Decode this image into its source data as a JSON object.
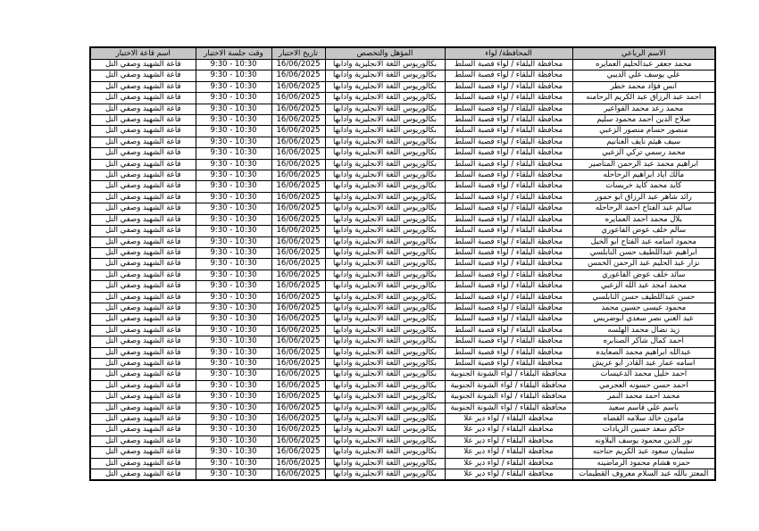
{
  "colors": {
    "header_background": "#c6c6c6",
    "border": "#000000",
    "page_background": "#ffffff"
  },
  "table": {
    "headers": {
      "name": "الاسم الرباعي",
      "district": "المحافظة/ لواء",
      "qualification": "المؤهل والتخصص",
      "date": "تاريخ الاختبار",
      "time": "وقت جلسة الاختبار",
      "hall": "اسم قاعة الاختبار"
    },
    "common": {
      "qualification": "بكالوريوس اللغة الانجليزية وآدابها",
      "date": "16/06/2025",
      "time": "9:30 - 10:30",
      "hall": "قاعة الشهيد وصفي التل"
    },
    "rows": [
      {
        "name": "محمد جعفر عبدالحليم العمايره",
        "district": "محافظة البلقاء / لواء قصبة السلط"
      },
      {
        "name": "علي يوسف علي الديبي",
        "district": "محافظة البلقاء / لواء قصبة السلط"
      },
      {
        "name": "انس فؤاد محمد خطر",
        "district": "محافظة البلقاء / لواء قصبة السلط"
      },
      {
        "name": "احمد عبد الرزاق عبد الكريم الرحامنه",
        "district": "محافظة البلقاء / لواء قصبة السلط"
      },
      {
        "name": "محمد رعد محمد الفواعير",
        "district": "محافظة البلقاء / لواء قصبة السلط"
      },
      {
        "name": "صلاح الدين احمد محمود سليم",
        "district": "محافظة البلقاء / لواء قصبة السلط"
      },
      {
        "name": "منصور حسام منصور الزعبي",
        "district": "محافظة البلقاء / لواء قصبة السلط"
      },
      {
        "name": "سيف هيثم نايف الغنانيم",
        "district": "محافظة البلقاء / لواء قصبة السلط"
      },
      {
        "name": "محمد رسمي تركي الزعبي",
        "district": "محافظة البلقاء / لواء قصبة السلط"
      },
      {
        "name": "ابراهيم محمد عبد الرحمن المناصير",
        "district": "محافظة البلقاء / لواء قصبة السلط"
      },
      {
        "name": "مالك اياد ابراهيم الرحاحله",
        "district": "محافظة البلقاء / لواء قصبة السلط"
      },
      {
        "name": "كايد محمد كايد خريسات",
        "district": "محافظة البلقاء / لواء قصبة السلط"
      },
      {
        "name": "رائد شاهر عبد الرزاق ابو حمور",
        "district": "محافظة البلقاء / لواء قصبة السلط"
      },
      {
        "name": "سالم عبد الفتاح احمد الرحاحله",
        "district": "محافظة البلقاء / لواء قصبة السلط"
      },
      {
        "name": "بلال محمد أحمد العمايره",
        "district": "محافظة البلقاء / لواء قصبة السلط"
      },
      {
        "name": "سالم خلف عوض الفاعوري",
        "district": "محافظة البلقاء / لواء قصبة السلط"
      },
      {
        "name": "محمود اسامه عبد الفتاح ابو الخيل",
        "district": "محافظة البلقاء / لواء قصبة السلط"
      },
      {
        "name": "ابراهيم عبداللطيف حسن النابلسي",
        "district": "محافظة البلقاء / لواء قصبة السلط"
      },
      {
        "name": "نزار عبد الحليم عبد الرحمن الخمس",
        "district": "محافظة البلقاء / لواء قصبة السلط"
      },
      {
        "name": "سائد خلف عوض الفاعوري",
        "district": "محافظة البلقاء / لواء قصبة السلط"
      },
      {
        "name": "محمد امجد عبد الله الزعبي",
        "district": "محافظة البلقاء / لواء قصبة السلط"
      },
      {
        "name": "حسن عبداللطيف حسن النابلسي",
        "district": "محافظة البلقاء / لواء قصبة السلط"
      },
      {
        "name": "محمود عيسى حسين محمد",
        "district": "محافظة البلقاء / لواء قصبة السلط"
      },
      {
        "name": "عبد الغني نصر سعدي ابوضريس",
        "district": "محافظة البلقاء / لواء قصبة السلط"
      },
      {
        "name": "زيد نضال محمد الهلسه",
        "district": "محافظة البلقاء / لواء قصبة السلط"
      },
      {
        "name": "احمد كمال شاكر الصنابره",
        "district": "محافظة البلقاء / لواء قصبة السلط"
      },
      {
        "name": "عبدالله ابراهيم محمد الصعايده",
        "district": "محافظة البلقاء / لواء قصبة السلط"
      },
      {
        "name": "اسامه عمار عبد القادر ابو عريش",
        "district": "محافظة البلقاء / لواء قصبة السلط"
      },
      {
        "name": "احمد خليل محمد الدعيسات",
        "district": "محافظة البلقاء / لواء الشونة الجنوبية"
      },
      {
        "name": "احمد حسن حسونه العجرمي",
        "district": "محافظة البلقاء / لواء الشونة الجنوبية"
      },
      {
        "name": "محمد احمد محمد النمر",
        "district": "محافظة البلقاء / لواء الشونة الجنوبية"
      },
      {
        "name": "باسم علي قاسم سعيد",
        "district": "محافظة البلقاء / لواء الشونة الجنوبية"
      },
      {
        "name": "مأمون خالد سلامه القضاه",
        "district": "محافظة البلقاء / لواء دير علا"
      },
      {
        "name": "حاكم سعد حسين الزيادات",
        "district": "محافظة البلقاء / لواء دير علا"
      },
      {
        "name": "نور الدين محمود يوسف البلاونه",
        "district": "محافظة البلقاء / لواء دير علا"
      },
      {
        "name": "سليمان سعود عبد الكريم حناحنه",
        "district": "محافظة البلقاء / لواء دير علا"
      },
      {
        "name": "حمزه هشام محمود الرماضينه",
        "district": "محافظة البلقاء / لواء دير علا"
      },
      {
        "name": "المعتز بالله عبد السلام معروف القطيمات",
        "district": "محافظة البلقاء / لواء دير علا"
      }
    ]
  }
}
